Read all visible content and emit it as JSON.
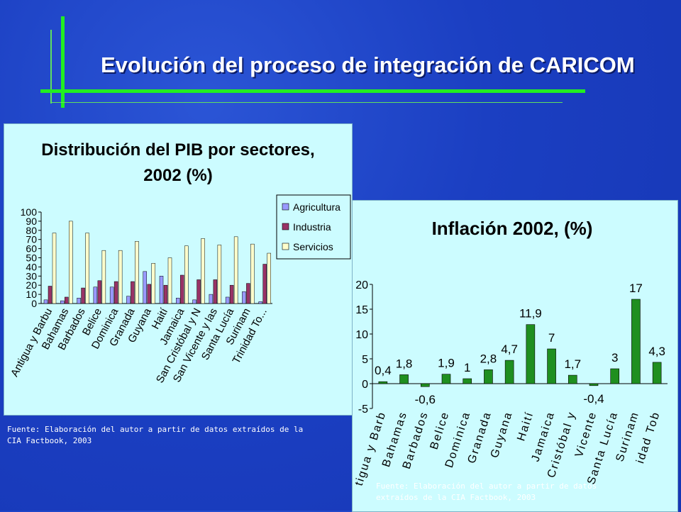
{
  "slide": {
    "title": "Evolución del proceso de integración de CARICOM"
  },
  "colors": {
    "accent_green": "#22ee22",
    "background_blue": "#1b3fc2",
    "panel": "#ccfcff",
    "agricultura": "#9999ff",
    "industria": "#993366",
    "servicios": "#ffffcc",
    "inflacion_bar": "#1f8f1f"
  },
  "sources": {
    "pib": "Fuente: Elaboración del autor a partir de datos extraídos de la CIA Factbook, 2003",
    "inflacion": "Fuente: Elaboración del autor a partir de datos extraídos de la CIA Factbook, 2003"
  },
  "chart_data": [
    {
      "id": "pib",
      "type": "bar",
      "title": "Distribución del PIB por sectores, 2002 (%)",
      "title_lines": [
        "Distribución del PIB por sectores,",
        "2002 (%)"
      ],
      "categories": [
        "Antigua y Barbuda",
        "Bahamas",
        "Barbados",
        "Belice",
        "Dominica",
        "Granada",
        "Guyana",
        "Haití",
        "Jamaica",
        "San Cristóbal y Nieves",
        "San Vicente y las Granadinas",
        "Santa Lucía",
        "Surinam",
        "Trinidad Tobago"
      ],
      "tick_labels": [
        "Antigua y Barbu",
        "Bahamas",
        "Barbados",
        "Belice",
        "Dominica",
        "Granada",
        "Guyana",
        "Haití",
        "Jamaica",
        "San Cristóbal y N",
        "San Vicente y las",
        "Santa Lucía",
        "Surinam",
        "Trinidad To..."
      ],
      "series": [
        {
          "name": "Agricultura",
          "values": [
            4,
            3,
            6,
            18,
            18,
            8,
            35,
            30,
            6,
            4,
            10,
            7,
            13,
            2
          ]
        },
        {
          "name": "Industria",
          "values": [
            19,
            7,
            17,
            25,
            24,
            24,
            21,
            20,
            31,
            26,
            26,
            20,
            22,
            43
          ]
        },
        {
          "name": "Servicios",
          "values": [
            77,
            90,
            77,
            58,
            58,
            68,
            44,
            50,
            63,
            71,
            64,
            73,
            65,
            55
          ]
        }
      ],
      "ylim": [
        0,
        100
      ],
      "yticks": [
        0,
        10,
        20,
        30,
        40,
        50,
        60,
        70,
        80,
        90,
        100
      ],
      "legend": "right",
      "grid": false
    },
    {
      "id": "inflacion",
      "type": "bar",
      "title": "Inflación 2002, (%)",
      "categories": [
        "Antigua y Barbuda",
        "Bahamas",
        "Barbados",
        "Belice",
        "Dominica",
        "Granada",
        "Guyana",
        "Haití",
        "Jamaica",
        "San Cristóbal y Nieves",
        "San Vicente",
        "Santa Lucía",
        "Surinam",
        "Trinidad Tobago"
      ],
      "tick_labels": [
        "tigua y Barb",
        "Bahamas",
        "Barbados",
        "Belice",
        "Dominica",
        "Granada",
        "Guyana",
        "Haití",
        "Jamaica",
        "Cristóbal y",
        "Vicente",
        "Santa Lucía",
        "Surinam",
        "idad Tob"
      ],
      "values": [
        0.4,
        1.8,
        -0.6,
        1.9,
        1,
        2.8,
        4.7,
        11.9,
        7,
        1.7,
        -0.4,
        3,
        17,
        4.3
      ],
      "data_labels": [
        "0,4",
        "1,8",
        "-0,6",
        "1,9",
        "1",
        "2,8",
        "4,7",
        "11,9",
        "7",
        "1,7",
        "-0,4",
        "3",
        "17",
        "4,3"
      ],
      "ylim": [
        -5,
        20
      ],
      "yticks": [
        -5,
        0,
        5,
        10,
        15,
        20
      ],
      "legend": "none",
      "grid": false
    }
  ]
}
